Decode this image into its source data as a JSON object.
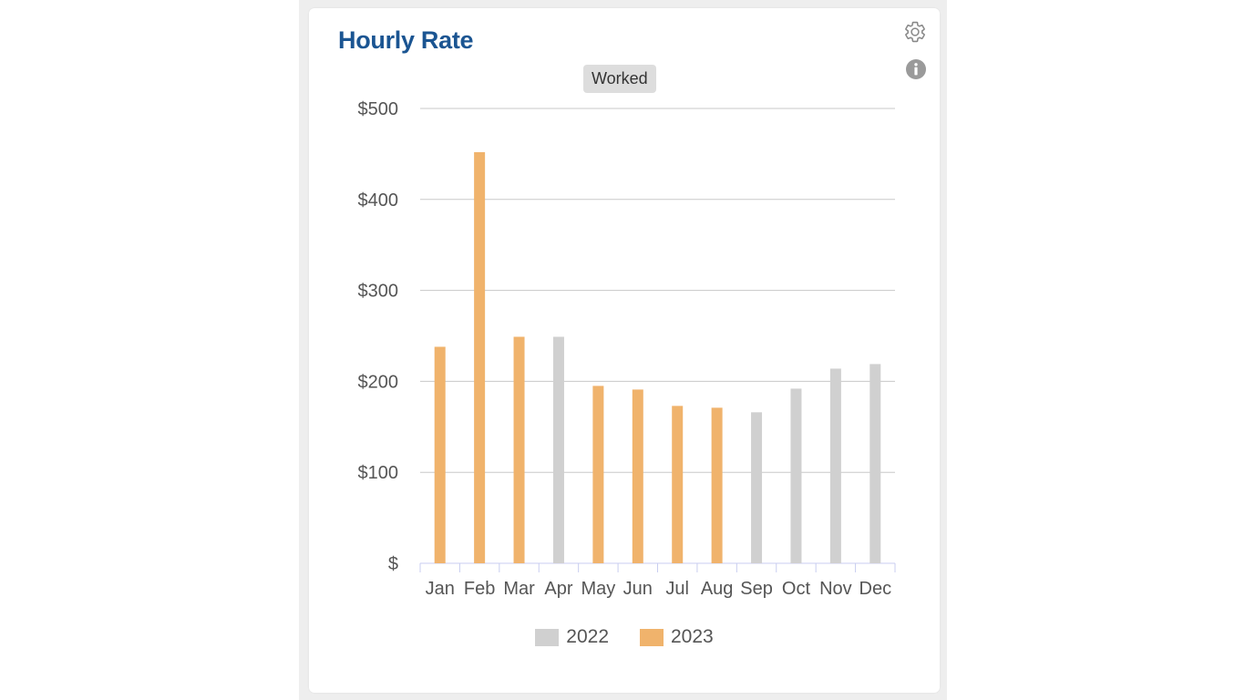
{
  "widget": {
    "title": "Hourly Rate",
    "toggle_label": "Worked",
    "settings_icon": "gear-icon",
    "info_icon": "info-icon"
  },
  "colors": {
    "title": "#1b5592",
    "series_2022": "#d0d0d0",
    "series_2023": "#f0b36c",
    "grid": "#c8c8c8",
    "axis": "#c8cdf0",
    "tick_text": "#555555"
  },
  "chart_data": {
    "type": "bar",
    "title": "",
    "xlabel": "",
    "ylabel": "",
    "ylim": [
      0,
      500
    ],
    "yticks": [
      0,
      100,
      200,
      300,
      400,
      500
    ],
    "ytick_labels": [
      "$",
      "$100",
      "$200",
      "$300",
      "$400",
      "$500"
    ],
    "categories": [
      "Jan",
      "Feb",
      "Mar",
      "Apr",
      "May",
      "Jun",
      "Jul",
      "Aug",
      "Sep",
      "Oct",
      "Nov",
      "Dec"
    ],
    "grid": true,
    "legend_position": "bottom-center",
    "series": [
      {
        "name": "2022",
        "values": [
          null,
          null,
          null,
          249,
          null,
          null,
          null,
          null,
          166,
          192,
          214,
          219
        ]
      },
      {
        "name": "2023",
        "values": [
          238,
          452,
          249,
          null,
          195,
          191,
          173,
          171,
          null,
          null,
          null,
          null
        ]
      }
    ]
  }
}
